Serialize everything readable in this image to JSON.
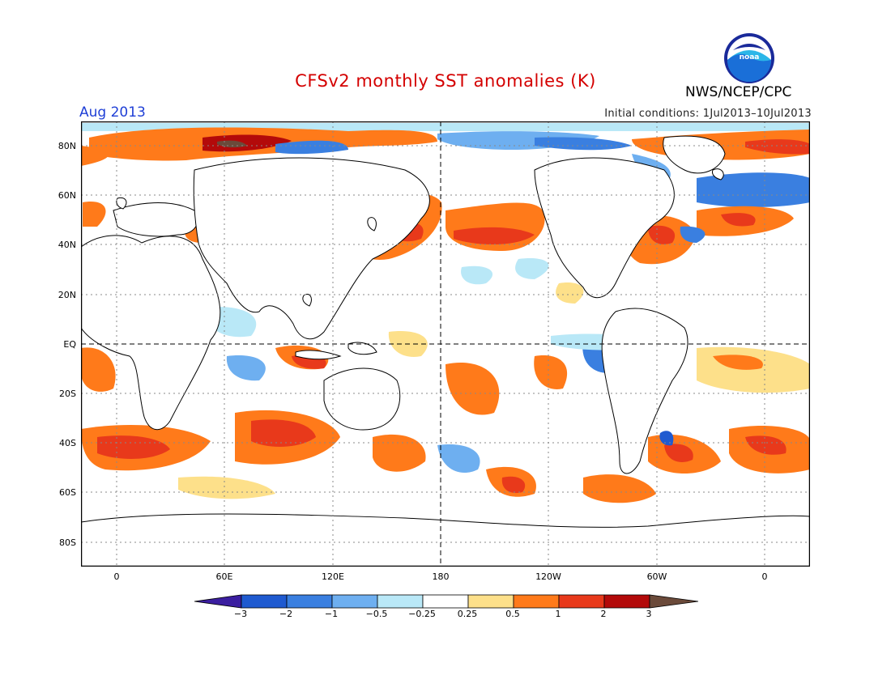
{
  "header": {
    "title": "CFSv2 monthly SST anomalies (K)",
    "period": "Aug 2013",
    "initial_conditions": "Initial conditions: 1Jul2013–10Jul2013",
    "agency": "NWS/NCEP/CPC",
    "logo_text": "noaa"
  },
  "map": {
    "lat_labels": [
      "80N",
      "60N",
      "40N",
      "20N",
      "EQ",
      "20S",
      "40S",
      "60S",
      "80S"
    ],
    "lon_labels": [
      "0",
      "60E",
      "120E",
      "180",
      "120W",
      "60W",
      "0"
    ]
  },
  "colorbar": {
    "labels": [
      "−3",
      "−2",
      "−1",
      "−0.5",
      "−0.25",
      "0.25",
      "0.5",
      "1",
      "2",
      "3"
    ],
    "bins": [
      {
        "color": "#3b1ea0"
      },
      {
        "color": "#1f5ad0"
      },
      {
        "color": "#3a7fe0"
      },
      {
        "color": "#6eaff0"
      },
      {
        "color": "#b9e8f7"
      },
      {
        "color": "#ffffff"
      },
      {
        "color": "#fde08a"
      },
      {
        "color": "#ff7a1a"
      },
      {
        "color": "#e8391b"
      },
      {
        "color": "#b30a0a"
      },
      {
        "color": "#6b4a3a"
      }
    ]
  }
}
